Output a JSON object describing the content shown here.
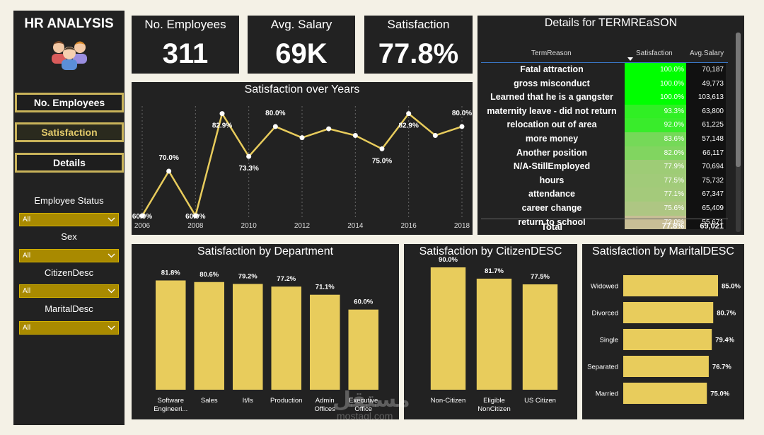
{
  "sidebar": {
    "title": "HR ANALYSIS",
    "nav": [
      {
        "label": "No. Employees"
      },
      {
        "label": "Satisfaction"
      },
      {
        "label": "Details"
      }
    ],
    "filters": [
      {
        "label": "Employee Status",
        "value": "All"
      },
      {
        "label": "Sex",
        "value": "All"
      },
      {
        "label": "CitizenDesc",
        "value": "All"
      },
      {
        "label": "MaritalDesc",
        "value": "All"
      }
    ]
  },
  "kpis": {
    "employees": {
      "title": "No. Employees",
      "value": "311"
    },
    "salary": {
      "title": "Avg. Salary",
      "value": "69K"
    },
    "satisfaction": {
      "title": "Satisfaction",
      "value": "77.8%"
    }
  },
  "details": {
    "title": "Details for TERMREaSON",
    "columns": [
      "TermReason",
      "Satisfaction",
      "Avg.Salary"
    ],
    "rows": [
      {
        "reason": "Fatal attraction",
        "satisfaction": "100.0%",
        "salary": "70,187",
        "sat_value": 100.0
      },
      {
        "reason": "gross misconduct",
        "satisfaction": "100.0%",
        "salary": "49,773",
        "sat_value": 100.0
      },
      {
        "reason": "Learned that he is a gangster",
        "satisfaction": "100.0%",
        "salary": "103,613",
        "sat_value": 100.0
      },
      {
        "reason": "maternity leave - did not return",
        "satisfaction": "93.3%",
        "salary": "63,800",
        "sat_value": 93.3
      },
      {
        "reason": "relocation out of area",
        "satisfaction": "92.0%",
        "salary": "61,225",
        "sat_value": 92.0
      },
      {
        "reason": "more money",
        "satisfaction": "83.6%",
        "salary": "57,148",
        "sat_value": 83.6
      },
      {
        "reason": "Another position",
        "satisfaction": "82.0%",
        "salary": "66,117",
        "sat_value": 82.0
      },
      {
        "reason": "N/A-StillEmployed",
        "satisfaction": "77.9%",
        "salary": "70,694",
        "sat_value": 77.9
      },
      {
        "reason": "hours",
        "satisfaction": "77.5%",
        "salary": "75,732",
        "sat_value": 77.5
      },
      {
        "reason": "attendance",
        "satisfaction": "77.1%",
        "salary": "67,347",
        "sat_value": 77.1
      },
      {
        "reason": "career change",
        "satisfaction": "75.6%",
        "salary": "65,409",
        "sat_value": 75.6
      },
      {
        "reason": "return to school",
        "satisfaction": "72.0%",
        "salary": "55,671",
        "sat_value": 72.0
      }
    ],
    "total": {
      "label": "Total",
      "satisfaction": "77.8%",
      "salary": "69,021"
    }
  },
  "chart_data": [
    {
      "type": "line",
      "title": "Satisfaction over Years",
      "x": [
        2006,
        2007,
        2008,
        2009,
        2010,
        2011,
        2012,
        2013,
        2014,
        2015,
        2016,
        2017,
        2018
      ],
      "values": [
        60.0,
        70.0,
        60.0,
        82.9,
        73.3,
        80.0,
        77.5,
        79.5,
        78.0,
        75.0,
        82.9,
        78.0,
        80.0
      ],
      "labels": [
        "60.0%",
        "70.0%",
        "60.0%",
        "82.9%",
        "73.3%",
        "80.0%",
        "",
        "",
        "",
        "75.0%",
        "82.9%",
        "",
        "80.0%"
      ],
      "tick_labels": [
        "2006",
        "2008",
        "2010",
        "2012",
        "2014",
        "2016",
        "2018"
      ],
      "ylim": [
        60,
        83
      ],
      "color": "#e8cc5c"
    },
    {
      "type": "bar",
      "title": "Satisfaction by Department",
      "categories": [
        "Software Engineeri...",
        "Sales",
        "It/Is",
        "Production",
        "Admin Offices",
        "Executive Office"
      ],
      "values": [
        81.8,
        80.6,
        79.2,
        77.2,
        71.1,
        60.0
      ],
      "labels": [
        "81.8%",
        "80.6%",
        "79.2%",
        "77.2%",
        "71.1%",
        "60.0%"
      ],
      "ylim": [
        0,
        90
      ],
      "color": "#e8cc5c"
    },
    {
      "type": "bar",
      "title": "Satisfaction by CitizenDESC",
      "categories": [
        "Non-Citizen",
        "Eligible NonCitizen",
        "US Citizen"
      ],
      "values": [
        90.0,
        81.7,
        77.5
      ],
      "labels": [
        "90.0%",
        "81.7%",
        "77.5%"
      ],
      "ylim": [
        0,
        90
      ],
      "color": "#e8cc5c"
    },
    {
      "type": "bar",
      "orientation": "horizontal",
      "title": "Satisfaction by MaritalDESC",
      "categories": [
        "Widowed",
        "Divorced",
        "Single",
        "Separated",
        "Married"
      ],
      "values": [
        85.0,
        80.7,
        79.4,
        76.7,
        75.0
      ],
      "labels": [
        "85.0%",
        "80.7%",
        "79.4%",
        "76.7%",
        "75.0%"
      ],
      "xlim": [
        0,
        85
      ],
      "color": "#e8cc5c"
    }
  ],
  "watermark": {
    "brand": "مستقل",
    "site": "mostaql.com"
  }
}
